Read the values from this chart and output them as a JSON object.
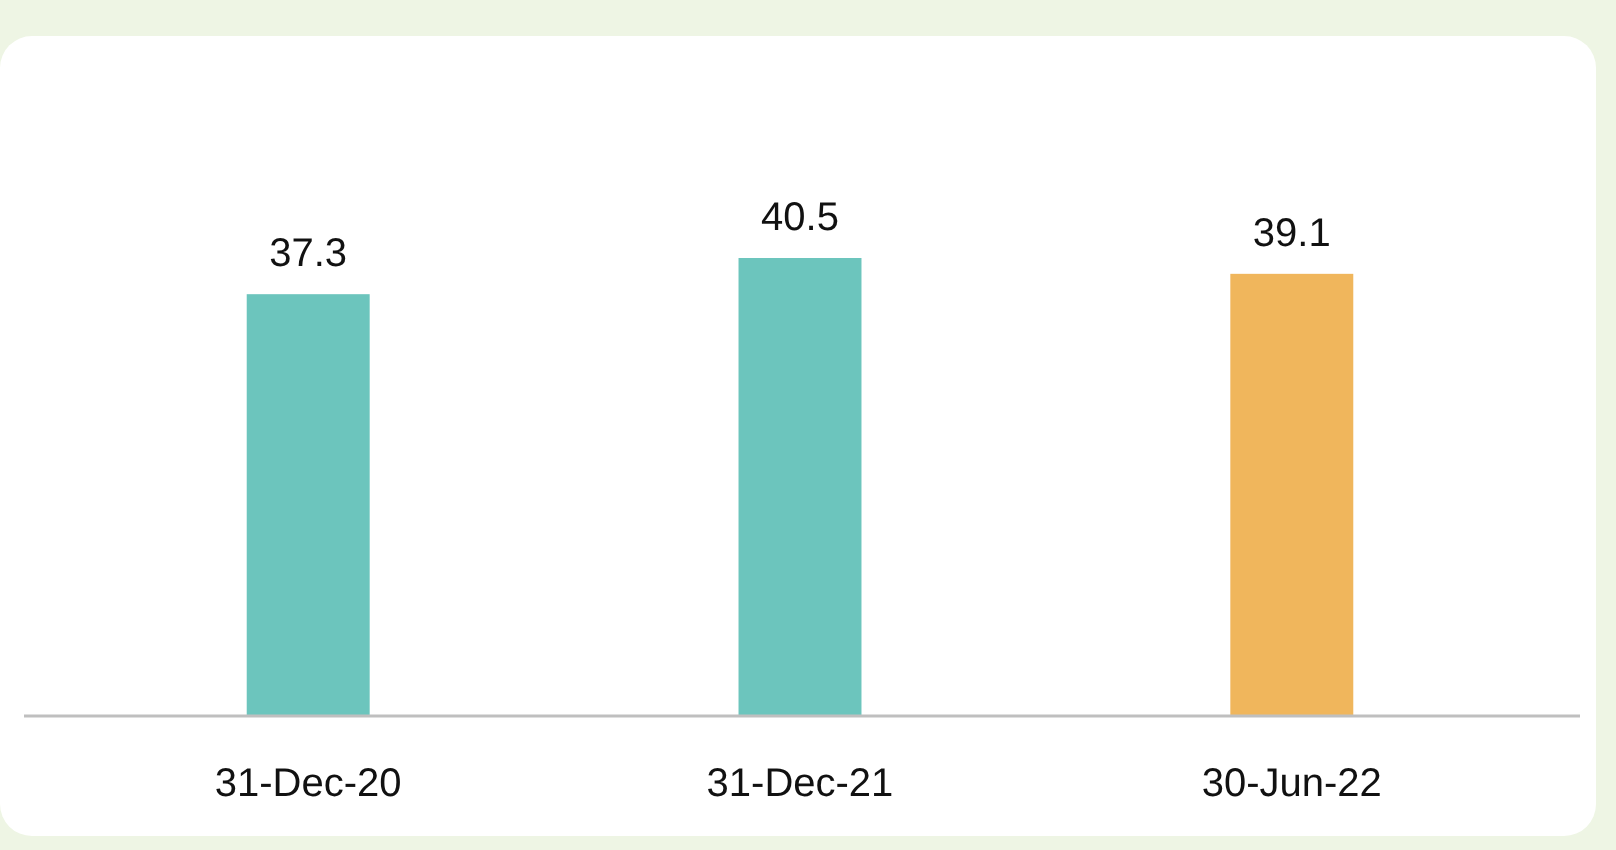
{
  "chart_data": {
    "type": "bar",
    "categories": [
      "31-Dec-20",
      "31-Dec-21",
      "30-Jun-22"
    ],
    "values": [
      37.3,
      40.5,
      39.1
    ],
    "colors": [
      "#6cc5bd",
      "#6cc5bd",
      "#f0b65c"
    ],
    "data_labels": true
  }
}
